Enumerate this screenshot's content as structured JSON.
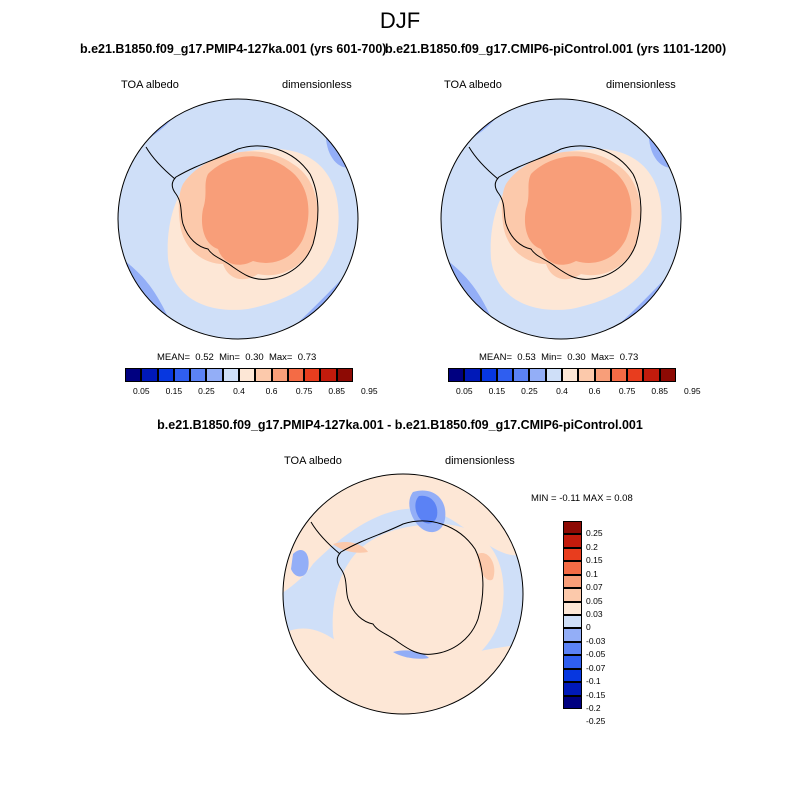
{
  "figure": {
    "title": "DJF"
  },
  "panels": [
    {
      "title": "b.e21.B1850.f09_g17.PMIP4-127ka.001 (yrs 601-700)",
      "variable": "TOA albedo",
      "units": "dimensionless",
      "stats": {
        "mean_label": "MEAN=",
        "mean": "0.52",
        "min_label": "Min=",
        "min": "0.30",
        "max_label": "Max=",
        "max": "0.73"
      }
    },
    {
      "title": "b.e21.B1850.f09_g17.CMIP6-piControl.001 (yrs 1101-1200)",
      "variable": "TOA albedo",
      "units": "dimensionless",
      "stats": {
        "mean_label": "MEAN=",
        "mean": "0.53",
        "min_label": "Min=",
        "min": "0.30",
        "max_label": "Max=",
        "max": "0.73"
      }
    },
    {
      "title": "b.e21.B1850.f09_g17.PMIP4-127ka.001 - b.e21.B1850.f09_g17.CMIP6-piControl.001",
      "variable": "TOA albedo",
      "units": "dimensionless",
      "stats_text": "MIN =  -0.11 MAX =  0.08"
    }
  ],
  "colorbars": {
    "main": {
      "colors": [
        "#000080",
        "#0019b8",
        "#0737e0",
        "#2f5ef0",
        "#5b82f5",
        "#93aef7",
        "#cfdff8",
        "#fde7d6",
        "#fcc9ab",
        "#f89e79",
        "#f46b45",
        "#e83d1e",
        "#c21b0c",
        "#8d0a04"
      ],
      "labels": [
        "0.05",
        "0.15",
        "0.25",
        "0.4",
        "0.6",
        "0.75",
        "0.85",
        "0.95"
      ]
    },
    "diff": {
      "colors": [
        "#8d0a04",
        "#c21b0c",
        "#e83d1e",
        "#f46b45",
        "#f89e79",
        "#fcc9ab",
        "#fde7d6",
        "#cfdff8",
        "#93aef7",
        "#5b82f5",
        "#2f5ef0",
        "#0737e0",
        "#0019b8",
        "#000080"
      ],
      "labels": [
        "0.25",
        "0.2",
        "0.15",
        "0.1",
        "0.07",
        "0.05",
        "0.03",
        "0",
        "-0.03",
        "-0.05",
        "-0.07",
        "-0.1",
        "-0.15",
        "-0.2",
        "-0.25"
      ]
    }
  },
  "chart_data": [
    {
      "type": "heatmap",
      "title": "b.e21.B1850.f09_g17.PMIP4-127ka.001 (yrs 601-700)",
      "projection": "south polar stereographic",
      "variable": "TOA albedo",
      "units": "dimensionless",
      "levels": [
        0.05,
        0.1,
        0.15,
        0.2,
        0.25,
        0.3,
        0.4,
        0.5,
        0.6,
        0.7,
        0.75,
        0.8,
        0.85,
        0.9,
        0.95
      ],
      "mean": 0.52,
      "min": 0.3,
      "max": 0.73
    },
    {
      "type": "heatmap",
      "title": "b.e21.B1850.f09_g17.CMIP6-piControl.001 (yrs 1101-1200)",
      "projection": "south polar stereographic",
      "variable": "TOA albedo",
      "units": "dimensionless",
      "levels": [
        0.05,
        0.1,
        0.15,
        0.2,
        0.25,
        0.3,
        0.4,
        0.5,
        0.6,
        0.7,
        0.75,
        0.8,
        0.85,
        0.9,
        0.95
      ],
      "mean": 0.53,
      "min": 0.3,
      "max": 0.73
    },
    {
      "type": "heatmap",
      "title": "b.e21.B1850.f09_g17.PMIP4-127ka.001 - b.e21.B1850.f09_g17.CMIP6-piControl.001",
      "projection": "south polar stereographic",
      "variable": "TOA albedo",
      "units": "dimensionless",
      "levels": [
        -0.25,
        -0.2,
        -0.15,
        -0.1,
        -0.07,
        -0.05,
        -0.03,
        0,
        0.03,
        0.05,
        0.07,
        0.1,
        0.15,
        0.2,
        0.25
      ],
      "min": -0.11,
      "max": 0.08
    }
  ]
}
